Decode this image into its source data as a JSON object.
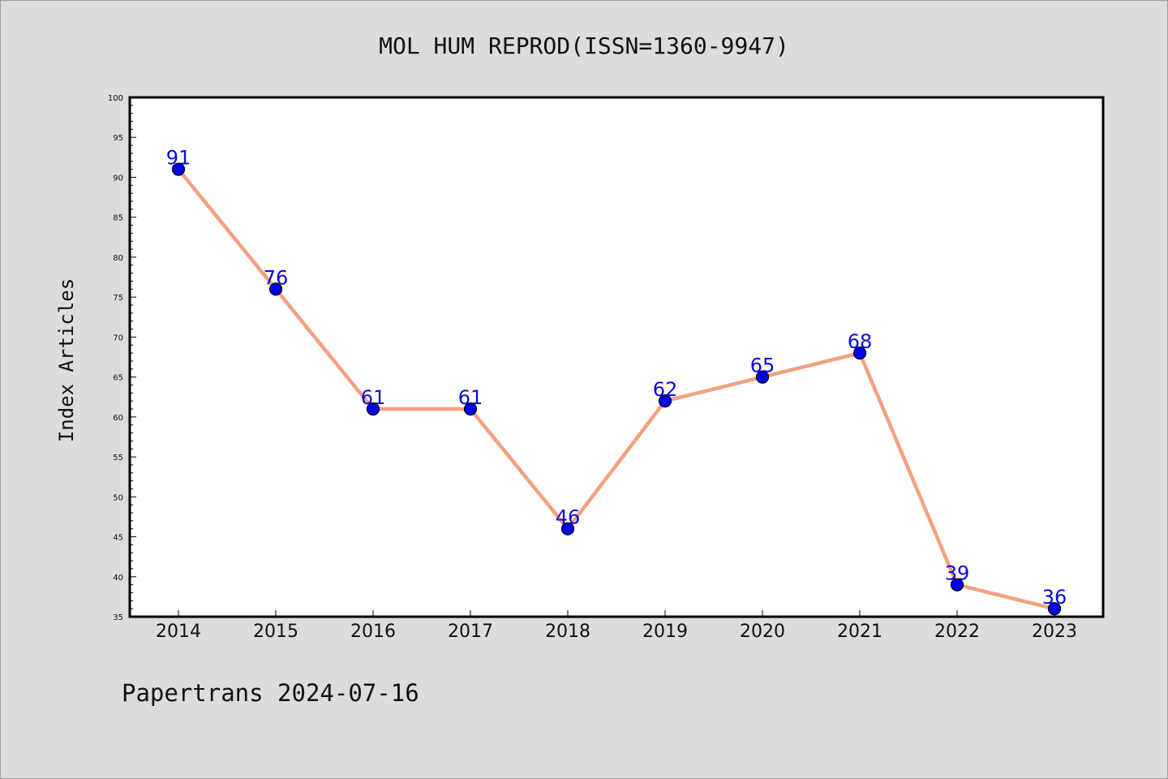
{
  "chart_data": {
    "type": "line",
    "title": "MOL HUM REPROD(ISSN=1360-9947)",
    "ylabel": "Index Articles",
    "xlabel": "",
    "footer": "Papertrans 2024-07-16",
    "x": [
      "2014",
      "2015",
      "2016",
      "2017",
      "2018",
      "2019",
      "2020",
      "2021",
      "2022",
      "2023"
    ],
    "series": [
      {
        "values": [
          91,
          76,
          61,
          61,
          46,
          62,
          65,
          68,
          39,
          36
        ]
      }
    ],
    "ylim": [
      35,
      100
    ],
    "yticks": [
      35,
      40,
      45,
      50,
      55,
      60,
      65,
      70,
      75,
      80,
      85,
      90,
      95,
      100
    ],
    "line_color": "#f4a07e",
    "marker_color": "#0000ee",
    "label_color": "#0a0adc",
    "plot_background": "#ffffff",
    "page_background": "#dcdcdc",
    "grid": false,
    "legend": "none"
  }
}
